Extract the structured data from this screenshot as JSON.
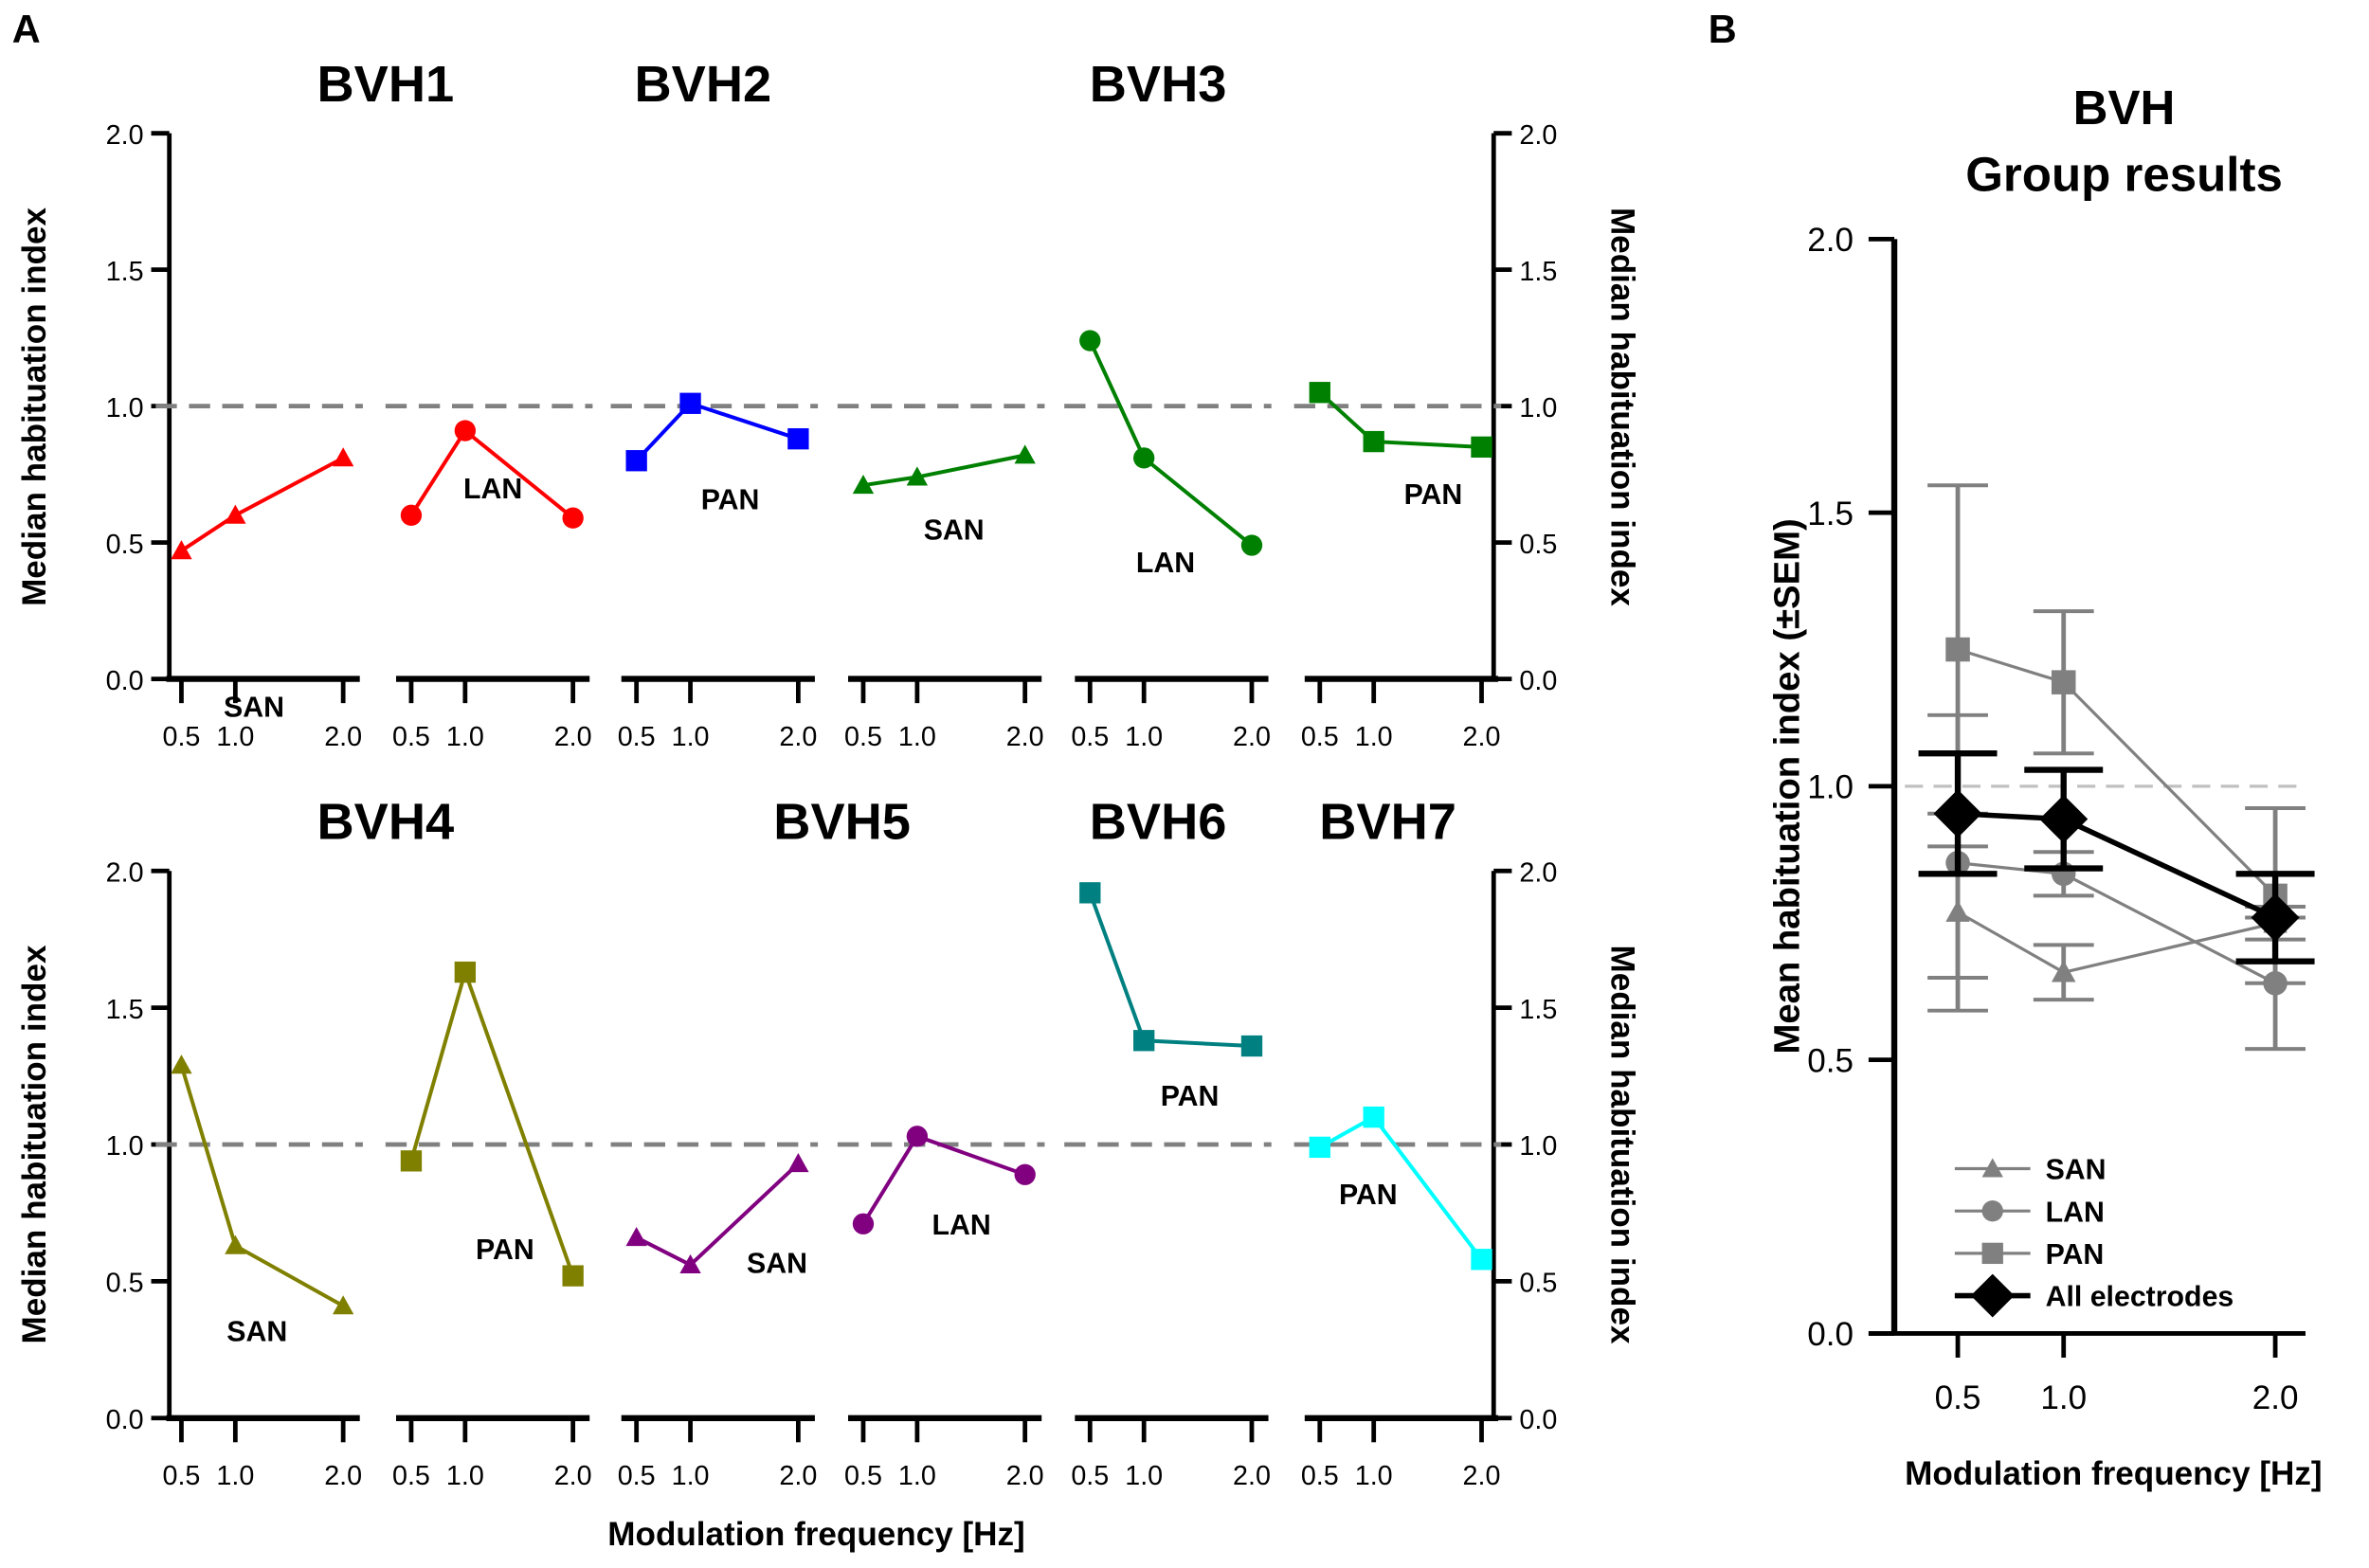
{
  "chart_data": [
    {
      "type": "line",
      "panel_label": "A",
      "ylabel": "Median habituation index",
      "xlabel": "Modulation frequency [Hz]",
      "ylim": [
        0,
        2.0
      ],
      "yticks": [
        "0.0",
        "0.5",
        "1.0",
        "1.5",
        "2.0"
      ],
      "x": [
        0.5,
        1.0,
        2.0
      ],
      "xtick_labels": [
        "0.5",
        "1.0",
        "2.0"
      ],
      "reference_line": 1.0,
      "subjects": [
        {
          "title": "BVH1",
          "row": 1,
          "series": [
            {
              "name": "SAN",
              "marker": "triangle",
              "color": "#ff0000",
              "values": [
                0.47,
                0.6,
                0.81
              ]
            },
            {
              "name": "LAN",
              "marker": "circle",
              "color": "#ff0000",
              "values": [
                0.6,
                0.91,
                0.59
              ]
            }
          ]
        },
        {
          "title": "BVH2",
          "row": 1,
          "series": [
            {
              "name": "PAN",
              "marker": "square",
              "color": "#0000ff",
              "values": [
                0.8,
                1.01,
                0.88
              ]
            },
            {
              "name": "SAN",
              "marker": "triangle",
              "color": "#008000",
              "values": [
                0.71,
                0.74,
                0.82
              ]
            }
          ]
        },
        {
          "title": "BVH3",
          "row": 1,
          "series": [
            {
              "name": "LAN",
              "marker": "circle",
              "color": "#008000",
              "values": [
                1.24,
                0.81,
                0.49
              ]
            },
            {
              "name": "PAN",
              "marker": "square",
              "color": "#008000",
              "values": [
                1.05,
                0.87,
                0.85
              ]
            }
          ]
        },
        {
          "title": "BVH4",
          "row": 2,
          "series": [
            {
              "name": "SAN",
              "marker": "triangle",
              "color": "#808000",
              "values": [
                1.29,
                0.63,
                0.41
              ]
            },
            {
              "name": "PAN",
              "marker": "square",
              "color": "#808000",
              "values": [
                0.94,
                1.63,
                0.52
              ]
            }
          ]
        },
        {
          "title": "BVH5",
          "row": 2,
          "series": [
            {
              "name": "SAN",
              "marker": "triangle",
              "color": "#800080",
              "values": [
                0.66,
                0.56,
                0.93
              ]
            },
            {
              "name": "LAN",
              "marker": "circle",
              "color": "#800080",
              "values": [
                0.71,
                1.03,
                0.89
              ]
            }
          ]
        },
        {
          "title": "BVH6",
          "row": 2,
          "series": [
            {
              "name": "PAN",
              "marker": "square",
              "color": "#008080",
              "values": [
                1.92,
                1.38,
                1.36
              ]
            }
          ]
        },
        {
          "title": "BVH7",
          "row": 2,
          "series": [
            {
              "name": "PAN",
              "marker": "square",
              "color": "#00ffff",
              "values": [
                0.99,
                1.1,
                0.58
              ]
            }
          ]
        }
      ]
    },
    {
      "type": "line",
      "panel_label": "B",
      "title": "BVH\nGroup results",
      "title_lines": [
        "BVH",
        "Group results"
      ],
      "ylabel": "Mean habituation index (±SEM)",
      "xlabel": "Modulation frequency [Hz]",
      "ylim": [
        0,
        2.0
      ],
      "yticks": [
        "0.0",
        "0.5",
        "1.0",
        "1.5",
        "2.0"
      ],
      "x": [
        0.5,
        1.0,
        2.0
      ],
      "xtick_labels": [
        "0.5",
        "1.0",
        "2.0"
      ],
      "reference_line": 1.0,
      "legend_position": "bottom-left",
      "series": [
        {
          "name": "SAN",
          "marker": "triangle",
          "color": "#808080",
          "values": [
            0.77,
            0.66,
            0.75
          ],
          "sem": [
            0.12,
            0.05,
            0.03
          ]
        },
        {
          "name": "LAN",
          "marker": "circle",
          "color": "#808080",
          "values": [
            0.86,
            0.84,
            0.64
          ],
          "sem": [
            0.27,
            0.04,
            0.12
          ]
        },
        {
          "name": "PAN",
          "marker": "square",
          "color": "#808080",
          "values": [
            1.25,
            1.19,
            0.8
          ],
          "sem": [
            0.3,
            0.13,
            0.16
          ]
        },
        {
          "name": "All electrodes",
          "marker": "diamond",
          "color": "#000000",
          "values": [
            0.95,
            0.94,
            0.76
          ],
          "sem": [
            0.11,
            0.09,
            0.08
          ]
        }
      ]
    }
  ]
}
